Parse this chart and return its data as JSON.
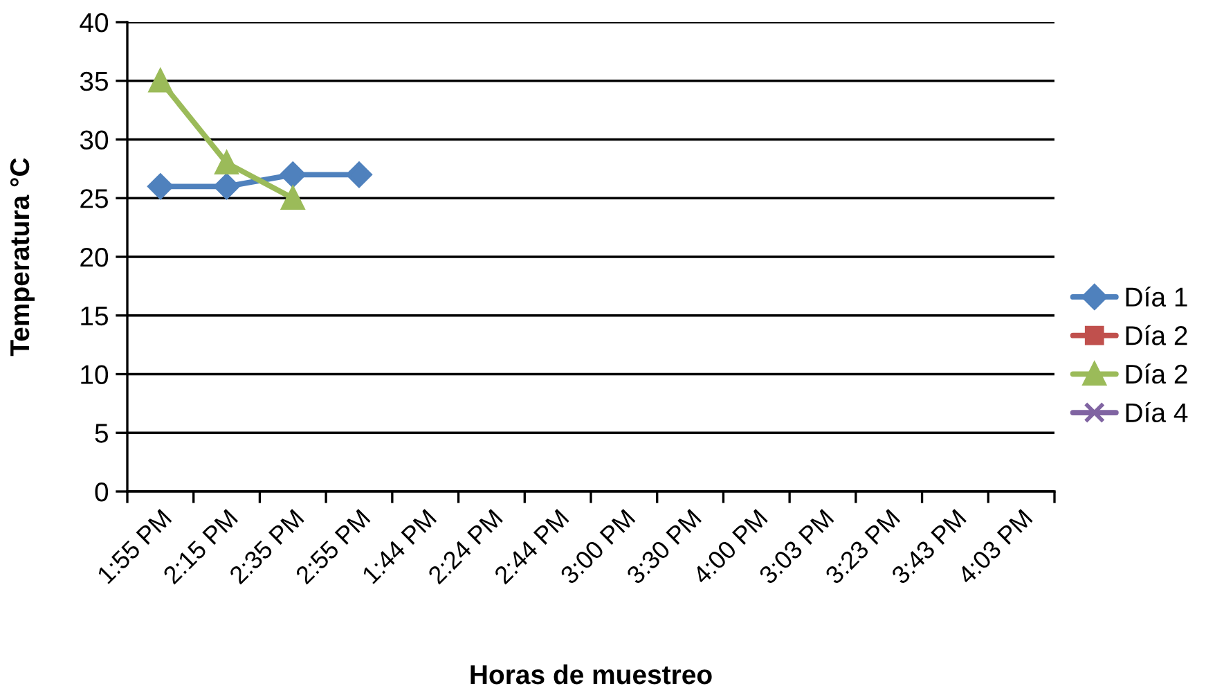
{
  "chart_data": {
    "type": "line",
    "xlabel": "Horas de muestreo",
    "ylabel": "Temperatura °C",
    "categories": [
      "1:55 PM",
      "2:15 PM",
      "2:35 PM",
      "2:55 PM",
      "1:44 PM",
      "2:24 PM",
      "2:44 PM",
      "3:00 PM",
      "3:30 PM",
      "4:00 PM",
      "3:03 PM",
      "3:23 PM",
      "3:43 PM",
      "4:03 PM"
    ],
    "series": [
      {
        "name": "Día 1",
        "color": "#4f81bd",
        "marker": "diamond",
        "values": [
          26,
          26,
          27,
          27,
          null,
          null,
          null,
          null,
          null,
          null,
          null,
          null,
          null,
          null
        ]
      },
      {
        "name": "Día 2",
        "color": "#c0504d",
        "marker": "square",
        "values": [
          null,
          null,
          null,
          null,
          null,
          null,
          null,
          null,
          null,
          null,
          null,
          null,
          null,
          null
        ]
      },
      {
        "name": "Día 2",
        "color": "#9bbb59",
        "marker": "triangle",
        "values": [
          35,
          28,
          25,
          null,
          null,
          null,
          null,
          null,
          null,
          null,
          null,
          null,
          null,
          null
        ]
      },
      {
        "name": "Día 4",
        "color": "#8064a2",
        "marker": "cross",
        "values": [
          null,
          null,
          null,
          null,
          null,
          null,
          null,
          null,
          null,
          null,
          null,
          null,
          null,
          null
        ]
      }
    ],
    "ylim": [
      0,
      40
    ],
    "yticks": [
      0,
      5,
      10,
      15,
      20,
      25,
      30,
      35,
      40
    ],
    "grid": "y",
    "legend": "right",
    "line_style": "solid"
  }
}
